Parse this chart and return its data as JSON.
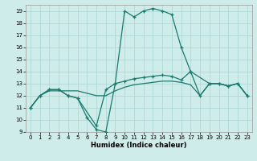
{
  "xlabel": "Humidex (Indice chaleur)",
  "xlim": [
    -0.5,
    23.5
  ],
  "ylim": [
    9,
    19.5
  ],
  "yticks": [
    9,
    10,
    11,
    12,
    13,
    14,
    15,
    16,
    17,
    18,
    19
  ],
  "xticks": [
    0,
    1,
    2,
    3,
    4,
    5,
    6,
    7,
    8,
    9,
    10,
    11,
    12,
    13,
    14,
    15,
    16,
    17,
    18,
    19,
    20,
    21,
    22,
    23
  ],
  "bg_color": "#ceecea",
  "grid_color": "#aad4d0",
  "line_color": "#1a7a6e",
  "curve1_x": [
    0,
    1,
    2,
    3,
    4,
    5,
    6,
    7,
    8,
    9,
    10,
    11,
    12,
    13,
    14,
    15,
    16,
    17,
    18,
    19,
    20,
    21,
    22,
    23
  ],
  "curve1_y": [
    11,
    12,
    12.5,
    12.5,
    12,
    11.8,
    10.2,
    9.2,
    9.0,
    13.0,
    19.0,
    18.5,
    19.0,
    19.2,
    19.0,
    18.7,
    16.0,
    14.0,
    12.0,
    13.0,
    13.0,
    12.8,
    13.0,
    12.0
  ],
  "curve2_x": [
    0,
    1,
    2,
    3,
    4,
    5,
    7,
    8,
    9,
    10,
    11,
    12,
    13,
    14,
    15,
    16,
    17,
    19,
    20,
    21,
    22,
    23
  ],
  "curve2_y": [
    11,
    12,
    12.5,
    12.5,
    12,
    11.8,
    9.5,
    12.5,
    13.0,
    13.2,
    13.4,
    13.5,
    13.6,
    13.7,
    13.6,
    13.3,
    14.0,
    13.0,
    13.0,
    12.8,
    13.0,
    12.0
  ],
  "curve3_x": [
    0,
    1,
    2,
    3,
    4,
    5,
    6,
    7,
    8,
    9,
    10,
    11,
    12,
    13,
    14,
    15,
    16,
    17,
    18,
    19,
    20,
    21,
    22,
    23
  ],
  "curve3_y": [
    11.0,
    12.0,
    12.4,
    12.4,
    12.4,
    12.4,
    12.2,
    12.0,
    12.0,
    12.4,
    12.7,
    12.9,
    13.0,
    13.1,
    13.2,
    13.2,
    13.1,
    12.9,
    12.0,
    13.0,
    13.0,
    12.8,
    13.0,
    12.0
  ]
}
